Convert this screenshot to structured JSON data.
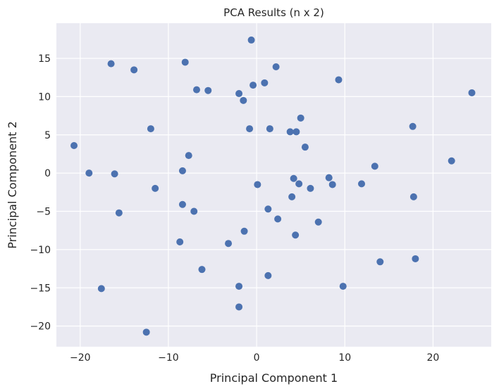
{
  "chart_data": {
    "type": "scatter",
    "title": "PCA Results (n x 2)",
    "xlabel": "Principal Component 1",
    "ylabel": "Principal Component 2",
    "xlim": [
      -22.7,
      26.6
    ],
    "ylim": [
      -22.7,
      19.6
    ],
    "xticks": [
      -20,
      -10,
      0,
      10,
      20
    ],
    "yticks": [
      -20,
      -15,
      -10,
      -5,
      0,
      5,
      10,
      15
    ],
    "grid": true,
    "colors": {
      "background": "#eaeaf2",
      "grid": "#ffffff",
      "marker": "#4c72b0"
    },
    "points": [
      {
        "x": -20.7,
        "y": 3.6
      },
      {
        "x": -19.0,
        "y": 0.0
      },
      {
        "x": -17.6,
        "y": -15.1
      },
      {
        "x": -16.5,
        "y": 14.3
      },
      {
        "x": -16.1,
        "y": -0.1
      },
      {
        "x": -15.6,
        "y": -5.2
      },
      {
        "x": -13.9,
        "y": 13.5
      },
      {
        "x": -12.5,
        "y": -20.8
      },
      {
        "x": -12.0,
        "y": 5.8
      },
      {
        "x": -11.5,
        "y": -2.0
      },
      {
        "x": -8.7,
        "y": -9.0
      },
      {
        "x": -8.4,
        "y": 0.3
      },
      {
        "x": -8.4,
        "y": -4.1
      },
      {
        "x": -8.1,
        "y": 14.5
      },
      {
        "x": -7.7,
        "y": 2.3
      },
      {
        "x": -7.1,
        "y": -5.0
      },
      {
        "x": -6.8,
        "y": 10.9
      },
      {
        "x": -6.2,
        "y": -12.6
      },
      {
        "x": -5.5,
        "y": 10.8
      },
      {
        "x": -3.2,
        "y": -9.2
      },
      {
        "x": -2.0,
        "y": 10.4
      },
      {
        "x": -2.0,
        "y": -14.8
      },
      {
        "x": -2.0,
        "y": -17.5
      },
      {
        "x": -1.5,
        "y": 9.5
      },
      {
        "x": -1.4,
        "y": -7.6
      },
      {
        "x": -0.8,
        "y": 5.8
      },
      {
        "x": -0.6,
        "y": 17.4
      },
      {
        "x": -0.4,
        "y": 11.5
      },
      {
        "x": 0.1,
        "y": -1.5
      },
      {
        "x": 0.9,
        "y": 11.8
      },
      {
        "x": 1.3,
        "y": -4.7
      },
      {
        "x": 1.3,
        "y": -13.4
      },
      {
        "x": 1.5,
        "y": 5.8
      },
      {
        "x": 2.2,
        "y": 13.9
      },
      {
        "x": 2.4,
        "y": -6.0
      },
      {
        "x": 3.8,
        "y": 5.4
      },
      {
        "x": 4.0,
        "y": -3.1
      },
      {
        "x": 4.2,
        "y": -0.7
      },
      {
        "x": 4.4,
        "y": -8.1
      },
      {
        "x": 4.5,
        "y": 5.4
      },
      {
        "x": 4.8,
        "y": -1.4
      },
      {
        "x": 5.0,
        "y": 7.2
      },
      {
        "x": 5.5,
        "y": 3.4
      },
      {
        "x": 6.1,
        "y": -2.0
      },
      {
        "x": 7.0,
        "y": -6.4
      },
      {
        "x": 8.2,
        "y": -0.6
      },
      {
        "x": 8.6,
        "y": -1.5
      },
      {
        "x": 9.3,
        "y": 12.2
      },
      {
        "x": 9.8,
        "y": -14.8
      },
      {
        "x": 11.9,
        "y": -1.4
      },
      {
        "x": 13.4,
        "y": 0.9
      },
      {
        "x": 14.0,
        "y": -11.6
      },
      {
        "x": 17.7,
        "y": 6.1
      },
      {
        "x": 17.8,
        "y": -3.1
      },
      {
        "x": 18.0,
        "y": -11.2
      },
      {
        "x": 22.1,
        "y": 1.6
      },
      {
        "x": 24.4,
        "y": 10.5
      }
    ]
  }
}
